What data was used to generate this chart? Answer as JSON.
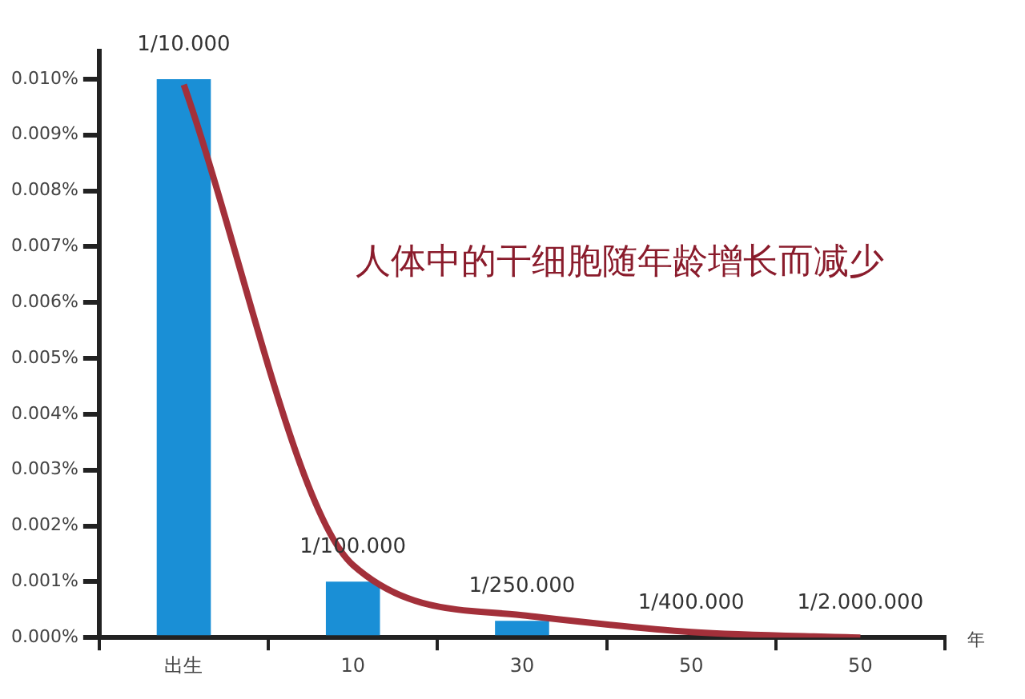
{
  "chart_data": {
    "type": "bar",
    "categories": [
      "出生",
      "10",
      "30",
      "50",
      "50"
    ],
    "series": [
      {
        "color": "#1a8fd6",
        "values": [
          0.01,
          0.001,
          0.0003,
          0,
          0
        ],
        "value_labels": [
          "1/10.000",
          "1/100.000",
          "1/250.000",
          "1/400.000",
          "1/2.000.000"
        ]
      },
      {
        "type": "line",
        "color": "#a3303a",
        "values": [
          0.0099,
          0.0013,
          0.0004,
          0.0001,
          0.0
        ]
      }
    ],
    "ylim": [
      0,
      0.0105
    ],
    "yticks": [
      {
        "value": 0,
        "label": "0.000%"
      },
      {
        "value": 0.001,
        "label": "0.001%"
      },
      {
        "value": 0.002,
        "label": "0.002%"
      },
      {
        "value": 0.003,
        "label": "0.003%"
      },
      {
        "value": 0.004,
        "label": "0.004%"
      },
      {
        "value": 0.005,
        "label": "0.005%"
      },
      {
        "value": 0.006,
        "label": "0.006%"
      },
      {
        "value": 0.007,
        "label": "0.007%"
      },
      {
        "value": 0.008,
        "label": "0.008%"
      },
      {
        "value": 0.009,
        "label": "0.009%"
      },
      {
        "value": 0.01,
        "label": "0.010%"
      }
    ],
    "xlabel": "年",
    "annotations": [
      "人体中的干细胞随年龄增长而减少"
    ],
    "grid": false,
    "legend": false,
    "marker": "none",
    "line_style": "solid"
  }
}
